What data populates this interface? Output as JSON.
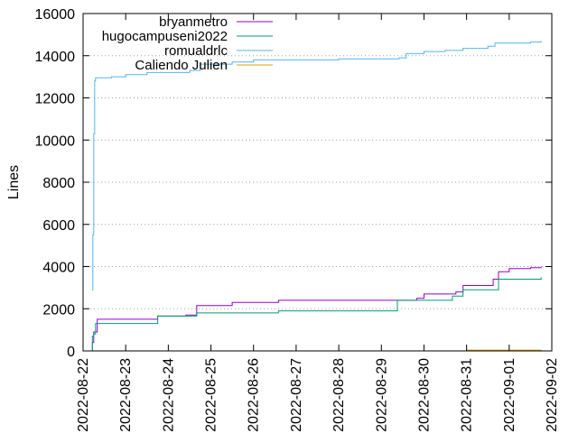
{
  "chart_data": {
    "type": "line",
    "title": "",
    "xlabel": "",
    "ylabel": "Lines",
    "ylim": [
      0,
      16000
    ],
    "xlim": [
      "2022-08-22",
      "2022-09-02"
    ],
    "x_ticks": [
      "2022-08-22",
      "2022-08-23",
      "2022-08-24",
      "2022-08-25",
      "2022-08-26",
      "2022-08-27",
      "2022-08-28",
      "2022-08-29",
      "2022-08-30",
      "2022-08-31",
      "2022-09-01",
      "2022-09-02"
    ],
    "y_ticks": [
      0,
      2000,
      4000,
      6000,
      8000,
      10000,
      12000,
      14000,
      16000
    ],
    "grid": true,
    "legend": "top-left",
    "series": [
      {
        "name": "bryanmetro",
        "color": "#9400d3",
        "points": [
          [
            "2022-08-22 05:00",
            0
          ],
          [
            "2022-08-22 05:15",
            400
          ],
          [
            "2022-08-22 06:00",
            900
          ],
          [
            "2022-08-22 08:00",
            1500
          ],
          [
            "2022-08-23 18:00",
            1650
          ],
          [
            "2022-08-24 10:00",
            1700
          ],
          [
            "2022-08-24 16:00",
            2150
          ],
          [
            "2022-08-25 12:00",
            2300
          ],
          [
            "2022-08-26 14:00",
            2400
          ],
          [
            "2022-08-29 10:00",
            2400
          ],
          [
            "2022-08-29 20:00",
            2500
          ],
          [
            "2022-08-30 00:00",
            2700
          ],
          [
            "2022-08-30 18:00",
            2800
          ],
          [
            "2022-08-30 22:00",
            3100
          ],
          [
            "2022-08-31 15:00",
            3400
          ],
          [
            "2022-08-31 18:00",
            3750
          ],
          [
            "2022-09-01 00:00",
            3900
          ],
          [
            "2022-09-01 12:00",
            3950
          ],
          [
            "2022-09-01 18:00",
            4000
          ]
        ]
      },
      {
        "name": "hugocampuseni2022",
        "color": "#009e73",
        "points": [
          [
            "2022-08-22 05:00",
            0
          ],
          [
            "2022-08-22 05:15",
            700
          ],
          [
            "2022-08-22 06:00",
            800
          ],
          [
            "2022-08-22 07:00",
            1300
          ],
          [
            "2022-08-23 18:00",
            1650
          ],
          [
            "2022-08-24 16:00",
            1800
          ],
          [
            "2022-08-26 14:00",
            1900
          ],
          [
            "2022-08-29 08:00",
            1900
          ],
          [
            "2022-08-29 09:00",
            2400
          ],
          [
            "2022-08-30 16:00",
            2600
          ],
          [
            "2022-08-30 22:00",
            2900
          ],
          [
            "2022-08-31 18:00",
            3400
          ],
          [
            "2022-09-01 18:00",
            3500
          ]
        ]
      },
      {
        "name": "romualdrlc",
        "color": "#56b4e9",
        "points": [
          [
            "2022-08-22 05:00",
            2900
          ],
          [
            "2022-08-22 05:30",
            5500
          ],
          [
            "2022-08-22 06:00",
            10300
          ],
          [
            "2022-08-22 06:30",
            12800
          ],
          [
            "2022-08-22 07:00",
            12950
          ],
          [
            "2022-08-22 16:00",
            13000
          ],
          [
            "2022-08-23 00:00",
            13100
          ],
          [
            "2022-08-23 12:00",
            13200
          ],
          [
            "2022-08-24 12:00",
            13300
          ],
          [
            "2022-08-24 18:00",
            13600
          ],
          [
            "2022-08-25 12:00",
            13700
          ],
          [
            "2022-08-26 00:00",
            13800
          ],
          [
            "2022-08-28 00:00",
            13850
          ],
          [
            "2022-08-29 10:00",
            13900
          ],
          [
            "2022-08-29 14:00",
            14100
          ],
          [
            "2022-08-30 00:00",
            14200
          ],
          [
            "2022-08-30 12:00",
            14250
          ],
          [
            "2022-08-30 22:00",
            14350
          ],
          [
            "2022-08-31 12:00",
            14450
          ],
          [
            "2022-08-31 16:00",
            14600
          ],
          [
            "2022-09-01 12:00",
            14650
          ],
          [
            "2022-09-01 18:00",
            14700
          ]
        ]
      },
      {
        "name": "Caliendo Julien",
        "color": "#e69f00",
        "points": [
          [
            "2022-08-30 21:00",
            0
          ],
          [
            "2022-08-31 00:00",
            40
          ],
          [
            "2022-09-01 18:00",
            60
          ]
        ]
      }
    ]
  }
}
